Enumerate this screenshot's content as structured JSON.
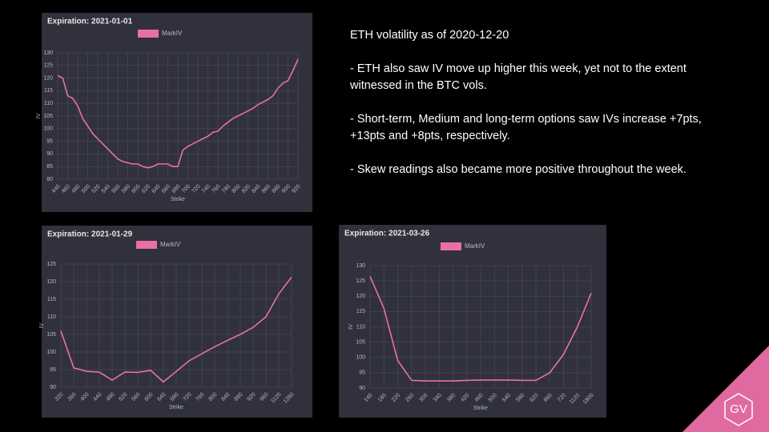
{
  "chart_data": [
    {
      "type": "line",
      "title": "Expiration: 2021-01-01",
      "x_label": "Strike",
      "y_label": "IV",
      "x": [
        440,
        450,
        460,
        470,
        480,
        490,
        500,
        510,
        520,
        530,
        540,
        550,
        560,
        570,
        580,
        590,
        600,
        610,
        620,
        630,
        640,
        650,
        660,
        670,
        680,
        690,
        700,
        710,
        720,
        730,
        740,
        750,
        760,
        770,
        780,
        790,
        800,
        810,
        820,
        830,
        840,
        850,
        860,
        870,
        880,
        890,
        900,
        910,
        920
      ],
      "series": [
        {
          "name": "MarkIV",
          "color": "#e870a8",
          "values": [
            121,
            120,
            113,
            112,
            109,
            104,
            101,
            98,
            96,
            94,
            92,
            90,
            88,
            87,
            86.5,
            86,
            86,
            85,
            84.5,
            85,
            86,
            86,
            86,
            85,
            85,
            91.5,
            93,
            94,
            95,
            96,
            97,
            98.5,
            99,
            101,
            102.5,
            104,
            105,
            106,
            107,
            108,
            109.5,
            110.5,
            111.5,
            113,
            116,
            118,
            119,
            123,
            127.5
          ]
        }
      ],
      "xlim": [
        440,
        920
      ],
      "xticks": [
        440,
        460,
        480,
        500,
        520,
        540,
        560,
        580,
        600,
        620,
        640,
        660,
        680,
        700,
        720,
        740,
        760,
        780,
        800,
        820,
        840,
        860,
        880,
        900,
        920
      ],
      "ylim": [
        80,
        130
      ],
      "yticks": [
        80,
        85,
        90,
        95,
        100,
        105,
        110,
        115,
        120,
        125,
        130
      ],
      "grid": true
    },
    {
      "type": "line",
      "title": "Expiration: 2021-01-29",
      "x_label": "Strike",
      "y_label": "IV",
      "categories": [
        "320",
        "360",
        "400",
        "440",
        "480",
        "520",
        "560",
        "600",
        "640",
        "680",
        "720",
        "760",
        "800",
        "840",
        "880",
        "920",
        "960",
        "1120",
        "1280"
      ],
      "series": [
        {
          "name": "MarkIV",
          "color": "#e870a8",
          "values": [
            106,
            95.5,
            94.5,
            94.3,
            92,
            94.3,
            94.2,
            94.8,
            91.5,
            94.5,
            97.5,
            99.5,
            101.5,
            103.3,
            105,
            107,
            110,
            116.5,
            121.3
          ]
        }
      ],
      "ylim": [
        90,
        125
      ],
      "yticks": [
        90,
        95,
        100,
        105,
        110,
        115,
        120,
        125
      ],
      "grid": true
    },
    {
      "type": "line",
      "title": "Expiration: 2021-03-26",
      "x_label": "Strike",
      "y_label": "IV",
      "categories": [
        "140",
        "180",
        "220",
        "260",
        "300",
        "340",
        "380",
        "420",
        "460",
        "500",
        "540",
        "580",
        "620",
        "660",
        "720",
        "1120",
        "1800"
      ],
      "series": [
        {
          "name": "MarkIV",
          "color": "#e870a8",
          "values": [
            126.5,
            116,
            99,
            92.5,
            92.3,
            92.3,
            92.3,
            92.5,
            92.6,
            92.6,
            92.6,
            92.5,
            92.5,
            95,
            101,
            110,
            121
          ]
        }
      ],
      "ylim": [
        90,
        130
      ],
      "yticks": [
        90,
        95,
        100,
        105,
        110,
        115,
        120,
        125,
        130
      ],
      "grid": true
    }
  ],
  "text": {
    "heading": "ETH volatility as of 2020-12-20",
    "bullets": [
      "- ETH also saw IV move up higher this week, yet not to the extent witnessed in the BTC vols.",
      "- Short-term, Medium and long-term options saw IVs increase +7pts, +13pts and +8pts, respectively.",
      "- Skew readings also became more positive throughout the week."
    ]
  },
  "logo": "GV"
}
